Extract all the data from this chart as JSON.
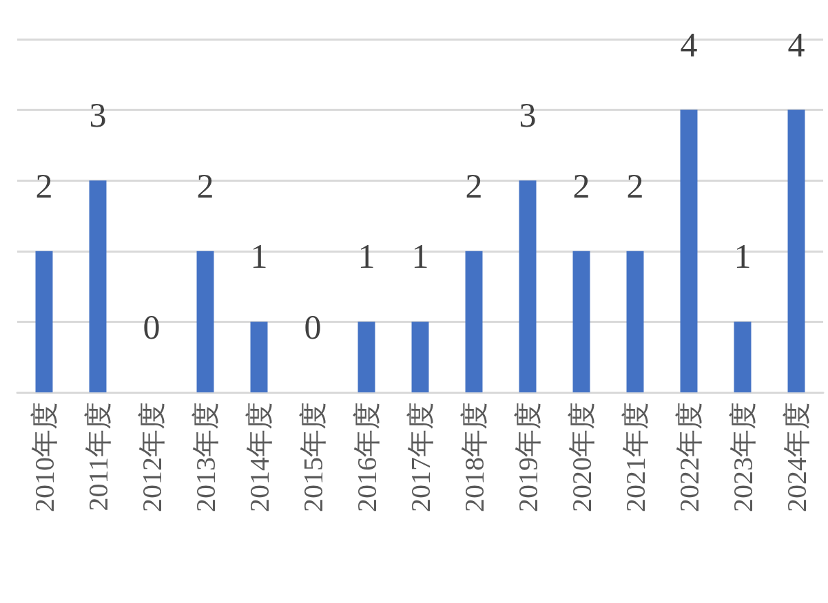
{
  "chart_data": {
    "type": "bar",
    "categories": [
      "2010年度",
      "2011年度",
      "2012年度",
      "2013年度",
      "2014年度",
      "2015年度",
      "2016年度",
      "2017年度",
      "2018年度",
      "2019年度",
      "2020年度",
      "2021年度",
      "2022年度",
      "2023年度",
      "2024年度"
    ],
    "values": [
      2,
      3,
      0,
      2,
      1,
      0,
      1,
      1,
      2,
      3,
      2,
      2,
      4,
      1,
      4
    ],
    "color": "#4472c4",
    "ylim": [
      0,
      5
    ],
    "yticks": [
      {
        "value": 0,
        "label": null
      },
      {
        "value": 1,
        "label": null
      },
      {
        "value": 2,
        "label": null
      },
      {
        "value": 3,
        "label": null
      },
      {
        "value": 4,
        "label": null
      },
      {
        "value": 5,
        "label": null
      }
    ],
    "grid": "y",
    "tick_labels": "x",
    "data_labels": true
  }
}
